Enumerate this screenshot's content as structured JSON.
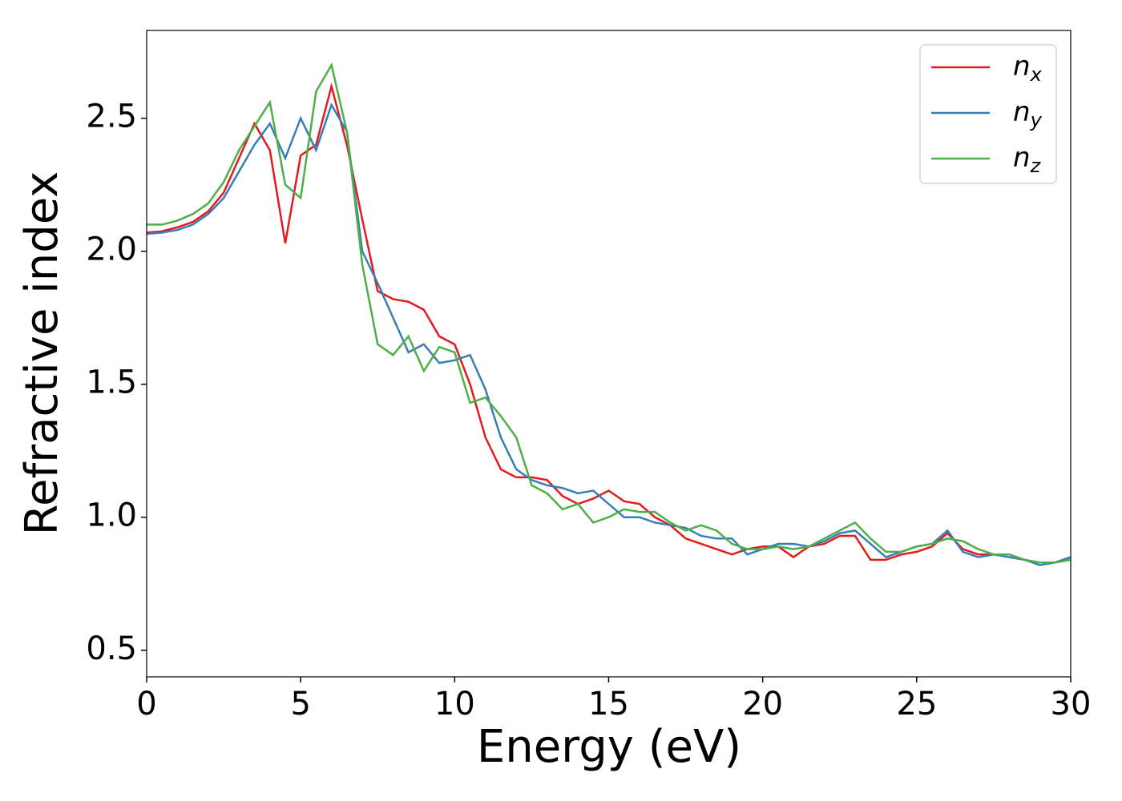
{
  "chart_data": {
    "type": "line",
    "xlabel": "Energy (eV)",
    "ylabel": "Refractive index",
    "x": [
      0,
      0.5,
      1,
      1.5,
      2,
      2.5,
      3,
      3.5,
      4,
      4.5,
      5,
      5.5,
      6,
      6.5,
      7,
      7.5,
      8,
      8.5,
      9,
      9.5,
      10,
      10.5,
      11,
      11.5,
      12,
      12.5,
      13,
      13.5,
      14,
      14.5,
      15,
      15.5,
      16,
      16.5,
      17,
      17.5,
      18,
      18.5,
      19,
      19.5,
      20,
      20.5,
      21,
      21.5,
      22,
      22.5,
      23,
      23.5,
      24,
      24.5,
      25,
      25.5,
      26,
      26.5,
      27,
      27.5,
      28,
      28.5,
      29,
      29.5,
      30
    ],
    "series": [
      {
        "name": "nx",
        "color": "#e41a1c",
        "values": [
          2.07,
          2.075,
          2.09,
          2.11,
          2.15,
          2.22,
          2.35,
          2.48,
          2.38,
          2.03,
          2.36,
          2.4,
          2.62,
          2.4,
          2.12,
          1.85,
          1.82,
          1.81,
          1.78,
          1.68,
          1.65,
          1.5,
          1.3,
          1.18,
          1.15,
          1.15,
          1.14,
          1.08,
          1.05,
          1.07,
          1.1,
          1.06,
          1.05,
          1.0,
          0.97,
          0.92,
          0.9,
          0.88,
          0.86,
          0.88,
          0.89,
          0.89,
          0.85,
          0.89,
          0.9,
          0.93,
          0.93,
          0.84,
          0.84,
          0.86,
          0.87,
          0.89,
          0.94,
          0.88,
          0.86,
          0.86,
          0.86,
          0.84,
          0.83,
          0.83,
          0.85
        ]
      },
      {
        "name": "ny",
        "color": "#377eb8",
        "values": [
          2.065,
          2.07,
          2.08,
          2.1,
          2.14,
          2.2,
          2.3,
          2.4,
          2.48,
          2.35,
          2.5,
          2.38,
          2.55,
          2.45,
          2.0,
          1.88,
          1.75,
          1.62,
          1.65,
          1.58,
          1.59,
          1.61,
          1.48,
          1.3,
          1.18,
          1.14,
          1.12,
          1.11,
          1.09,
          1.1,
          1.05,
          1.0,
          1.0,
          0.98,
          0.97,
          0.96,
          0.93,
          0.92,
          0.92,
          0.86,
          0.88,
          0.9,
          0.9,
          0.89,
          0.91,
          0.94,
          0.95,
          0.9,
          0.85,
          0.87,
          0.89,
          0.9,
          0.95,
          0.87,
          0.85,
          0.86,
          0.85,
          0.84,
          0.82,
          0.83,
          0.85
        ]
      },
      {
        "name": "nz",
        "color": "#4daf4a",
        "values": [
          2.1,
          2.1,
          2.115,
          2.14,
          2.18,
          2.26,
          2.38,
          2.47,
          2.56,
          2.25,
          2.2,
          2.6,
          2.7,
          2.45,
          1.95,
          1.65,
          1.61,
          1.68,
          1.55,
          1.64,
          1.62,
          1.43,
          1.45,
          1.38,
          1.3,
          1.12,
          1.09,
          1.03,
          1.05,
          0.98,
          1.0,
          1.03,
          1.02,
          1.02,
          0.98,
          0.95,
          0.97,
          0.95,
          0.9,
          0.88,
          0.88,
          0.89,
          0.88,
          0.89,
          0.92,
          0.95,
          0.98,
          0.92,
          0.87,
          0.87,
          0.89,
          0.9,
          0.92,
          0.91,
          0.88,
          0.86,
          0.86,
          0.84,
          0.83,
          0.83,
          0.84
        ]
      }
    ],
    "xlim": [
      0,
      30
    ],
    "ylim": [
      0.4,
      2.83
    ],
    "xticks": [
      0,
      5,
      10,
      15,
      20,
      25,
      30
    ],
    "yticks": [
      0.5,
      {
        "value": 1,
        "label": "1.0"
      },
      1.5,
      {
        "value": 2,
        "label": "2.0"
      },
      2.5
    ],
    "legend": "upper right"
  }
}
